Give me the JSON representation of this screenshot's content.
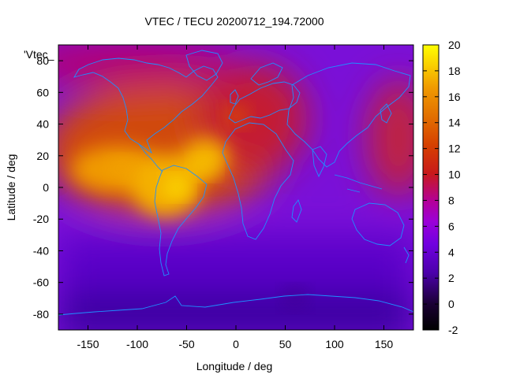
{
  "chart_data": {
    "type": "heatmap",
    "title": "VTEC / TECU 20200712_194.72000",
    "xlabel": "Longitude / deg",
    "ylabel": "Latitude / deg",
    "legend_label": "'Vtec_",
    "xlim": [
      -180,
      180
    ],
    "ylim": [
      -90,
      90
    ],
    "x_ticks": [
      -150,
      -100,
      -50,
      0,
      50,
      100,
      150
    ],
    "y_ticks": [
      -80,
      -60,
      -40,
      -20,
      0,
      20,
      40,
      60,
      80
    ],
    "colorbar": {
      "min": -2,
      "max": 20,
      "ticks": [
        -2,
        0,
        2,
        4,
        6,
        8,
        10,
        12,
        14,
        16,
        18,
        20
      ],
      "palette": "gnuplot black-purple-red-orange-yellow"
    },
    "grid": false,
    "overlay": "coastlines",
    "coastline_color": "#1e90ff",
    "regions": [
      {
        "name": "tropical-americas-peak",
        "lon": -60,
        "lat": 0,
        "value": 19
      },
      {
        "name": "south-atlantic-peak",
        "lon": -32,
        "lat": 13,
        "value": 18
      },
      {
        "name": "east-pacific-peak",
        "lon": -115,
        "lat": 12,
        "value": 17
      },
      {
        "name": "north-atlantic-europe",
        "lon": 0,
        "lat": 45,
        "value": 13
      },
      {
        "name": "southern-ocean",
        "lon": 60,
        "lat": -70,
        "value": 2
      }
    ]
  }
}
